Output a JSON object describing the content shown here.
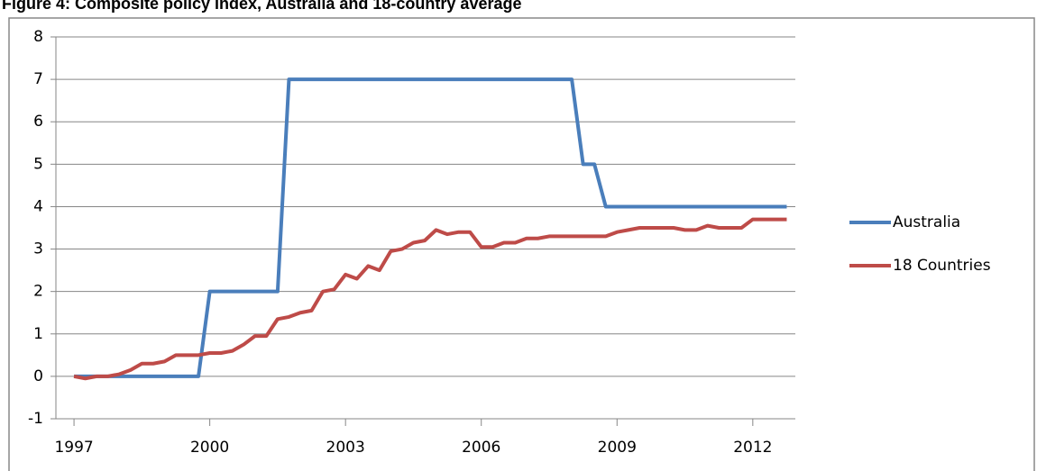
{
  "chart_data": {
    "type": "line",
    "title": "Figure 4: Composite policy index, Australia and 18-country average",
    "x": [
      1997,
      1997.25,
      1997.5,
      1997.75,
      1998,
      1998.25,
      1998.5,
      1998.75,
      1999,
      1999.25,
      1999.5,
      1999.75,
      2000,
      2000.25,
      2000.5,
      2000.75,
      2001,
      2001.25,
      2001.5,
      2001.75,
      2002,
      2002.25,
      2002.5,
      2002.75,
      2003,
      2003.25,
      2003.5,
      2003.75,
      2004,
      2004.25,
      2004.5,
      2004.75,
      2005,
      2005.25,
      2005.5,
      2005.75,
      2006,
      2006.25,
      2006.5,
      2006.75,
      2007,
      2007.25,
      2007.5,
      2007.75,
      2008,
      2008.25,
      2008.5,
      2008.75,
      2009,
      2009.25,
      2009.5,
      2009.75,
      2010,
      2010.25,
      2010.5,
      2010.75,
      2011,
      2011.25,
      2011.5,
      2011.75,
      2012,
      2012.25,
      2012.5,
      2012.75
    ],
    "series": [
      {
        "name": "Australia",
        "color": "#4a7ebb",
        "values": [
          0,
          0,
          0,
          0,
          0,
          0,
          0,
          0,
          0,
          0,
          0,
          0,
          2,
          2,
          2,
          2,
          2,
          2,
          2,
          7,
          7,
          7,
          7,
          7,
          7,
          7,
          7,
          7,
          7,
          7,
          7,
          7,
          7,
          7,
          7,
          7,
          7,
          7,
          7,
          7,
          7,
          7,
          7,
          7,
          7,
          5,
          5,
          4,
          4,
          4,
          4,
          4,
          4,
          4,
          4,
          4,
          4,
          4,
          4,
          4,
          4,
          4,
          4,
          4
        ]
      },
      {
        "name": "18 Countries",
        "color": "#be4b48",
        "values": [
          0,
          -0.05,
          0,
          0,
          0.05,
          0.15,
          0.3,
          0.3,
          0.35,
          0.5,
          0.5,
          0.5,
          0.55,
          0.55,
          0.6,
          0.75,
          0.95,
          0.95,
          1.35,
          1.4,
          1.5,
          1.55,
          2.0,
          2.05,
          2.4,
          2.3,
          2.6,
          2.5,
          2.95,
          3.0,
          3.15,
          3.2,
          3.45,
          3.35,
          3.4,
          3.4,
          3.05,
          3.05,
          3.15,
          3.15,
          3.25,
          3.25,
          3.3,
          3.3,
          3.3,
          3.3,
          3.3,
          3.3,
          3.4,
          3.45,
          3.5,
          3.5,
          3.5,
          3.5,
          3.45,
          3.45,
          3.55,
          3.5,
          3.5,
          3.5,
          3.7,
          3.7,
          3.7,
          3.7
        ]
      }
    ],
    "xlim": [
      1996.6,
      2012.94
    ],
    "xticks": [
      1997,
      2000,
      2003,
      2006,
      2009,
      2012
    ],
    "ylim": [
      -1,
      8
    ],
    "yticks": [
      -1,
      0,
      1,
      2,
      3,
      4,
      5,
      6,
      7,
      8
    ],
    "grid": true,
    "legend": "right"
  }
}
